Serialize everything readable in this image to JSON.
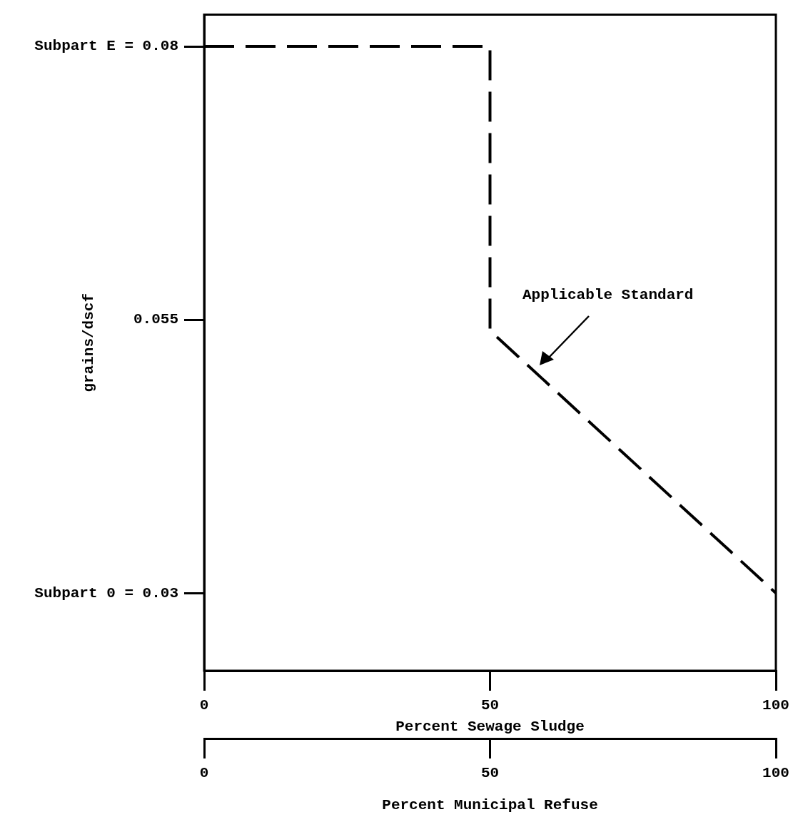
{
  "chart_data": {
    "type": "line",
    "xlabel": "Percent Sewage Sludge",
    "ylabel": "grains/dscf",
    "x2label": "Percent Municipal Refuse",
    "xlim": [
      0,
      100
    ],
    "xticks": [
      0,
      50,
      100
    ],
    "x2lim": [
      0,
      100
    ],
    "x2ticks": [
      0,
      50,
      100
    ],
    "ylim": [
      0.0229,
      0.0829
    ],
    "yticks": [
      {
        "value": 0.08,
        "label": "Subpart E = 0.08"
      },
      {
        "value": 0.055,
        "label": "0.055"
      },
      {
        "value": 0.03,
        "label": "Subpart 0 = 0.03"
      }
    ],
    "series": [
      {
        "color": "#000000",
        "x": [
          0,
          50,
          50,
          100
        ],
        "values": [
          0.08,
          0.08,
          0.054,
          0.03
        ]
      }
    ],
    "annotations": [
      "Applicable Standard"
    ],
    "grid": false,
    "legend": false,
    "marker": "none",
    "line_style": "dashed"
  }
}
